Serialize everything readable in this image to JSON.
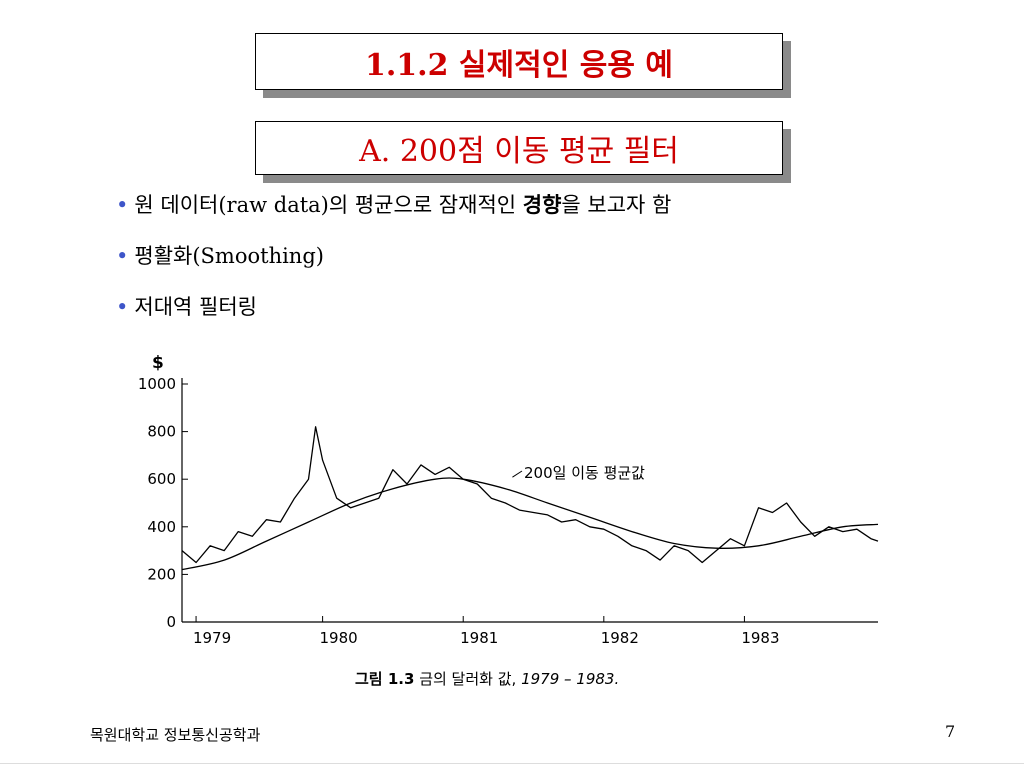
{
  "slide": {
    "title": "1.1.2 실제적인 응용 예",
    "subtitle": "A. 200점 이동 평균 필터",
    "colors": {
      "title_text": "#cc0000",
      "bullet_dot": "#3e55c9",
      "title_shadow": "#8a8a8a"
    },
    "bullets": [
      {
        "dot": "•",
        "pre": "원 데이터(raw data)의 평균으로 잠재적인 ",
        "bold": "경향",
        "post": "을 보고자 함"
      },
      {
        "dot": "•",
        "pre": "평활화(Smoothing)",
        "bold": "",
        "post": ""
      },
      {
        "dot": "•",
        "pre": "저대역 필터링",
        "bold": "",
        "post": ""
      }
    ],
    "footer": {
      "left": "목원대학교 정보통신공학과",
      "page": "7"
    }
  },
  "caption": {
    "label": "그림 1.3",
    "text": "금의 달러화 값,",
    "years": "1979 – 1983."
  },
  "chart_data": {
    "type": "line",
    "ylabel": "$",
    "xlabel": "",
    "ylim": [
      0,
      1000
    ],
    "y_ticks": [
      "0",
      "200",
      "400",
      "600",
      "800",
      "1000"
    ],
    "x_range": [
      1979.0,
      1983.95
    ],
    "x_ticks": [
      {
        "value": 1979.1,
        "label": "1979"
      },
      {
        "value": 1980.0,
        "label": "1980"
      },
      {
        "value": 1981.0,
        "label": "1981"
      },
      {
        "value": 1982.0,
        "label": "1982"
      },
      {
        "value": 1983.0,
        "label": "1983"
      }
    ],
    "annotation": "200일 이동 평균값",
    "series": [
      {
        "name": "",
        "values": [
          [
            1979.0,
            300
          ],
          [
            1979.1,
            250
          ],
          [
            1979.2,
            320
          ],
          [
            1979.3,
            300
          ],
          [
            1979.4,
            380
          ],
          [
            1979.5,
            360
          ],
          [
            1979.6,
            430
          ],
          [
            1979.7,
            420
          ],
          [
            1979.8,
            520
          ],
          [
            1979.9,
            600
          ],
          [
            1979.95,
            820
          ],
          [
            1980.0,
            680
          ],
          [
            1980.1,
            520
          ],
          [
            1980.2,
            480
          ],
          [
            1980.3,
            500
          ],
          [
            1980.4,
            520
          ],
          [
            1980.5,
            640
          ],
          [
            1980.6,
            580
          ],
          [
            1980.7,
            660
          ],
          [
            1980.8,
            620
          ],
          [
            1980.9,
            650
          ],
          [
            1981.0,
            600
          ],
          [
            1981.1,
            580
          ],
          [
            1981.2,
            520
          ],
          [
            1981.3,
            500
          ],
          [
            1981.4,
            470
          ],
          [
            1981.5,
            460
          ],
          [
            1981.6,
            450
          ],
          [
            1981.7,
            420
          ],
          [
            1981.8,
            430
          ],
          [
            1981.9,
            400
          ],
          [
            1982.0,
            390
          ],
          [
            1982.1,
            360
          ],
          [
            1982.2,
            320
          ],
          [
            1982.3,
            300
          ],
          [
            1982.4,
            260
          ],
          [
            1982.5,
            320
          ],
          [
            1982.6,
            300
          ],
          [
            1982.7,
            250
          ],
          [
            1982.8,
            300
          ],
          [
            1982.9,
            350
          ],
          [
            1983.0,
            320
          ],
          [
            1983.1,
            480
          ],
          [
            1983.2,
            460
          ],
          [
            1983.3,
            500
          ],
          [
            1983.4,
            420
          ],
          [
            1983.5,
            360
          ],
          [
            1983.6,
            400
          ],
          [
            1983.7,
            380
          ],
          [
            1983.8,
            390
          ],
          [
            1983.9,
            350
          ],
          [
            1983.95,
            340
          ]
        ]
      },
      {
        "name": "200일 이동 평균값",
        "values": [
          [
            1979.0,
            220
          ],
          [
            1979.3,
            260
          ],
          [
            1979.6,
            340
          ],
          [
            1979.9,
            420
          ],
          [
            1980.2,
            500
          ],
          [
            1980.5,
            560
          ],
          [
            1980.8,
            600
          ],
          [
            1981.0,
            600
          ],
          [
            1981.3,
            560
          ],
          [
            1981.6,
            500
          ],
          [
            1981.9,
            440
          ],
          [
            1982.2,
            380
          ],
          [
            1982.5,
            330
          ],
          [
            1982.8,
            310
          ],
          [
            1983.1,
            320
          ],
          [
            1983.4,
            360
          ],
          [
            1983.7,
            400
          ],
          [
            1983.95,
            410
          ]
        ]
      }
    ]
  }
}
